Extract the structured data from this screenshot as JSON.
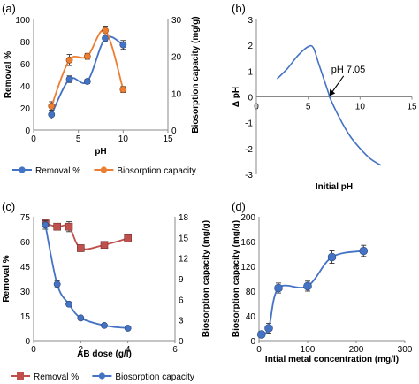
{
  "chart_data": [
    {
      "type": "line",
      "panel_label": "(a)",
      "xlabel": "pH",
      "ylabel": "Removal %",
      "y2label": "Biosorption capacity (mg/g)",
      "xlim": [
        0,
        15
      ],
      "ylim": [
        0,
        100
      ],
      "y2lim": [
        0,
        30
      ],
      "x_ticks": [
        "0",
        "5",
        "10",
        "15"
      ],
      "y_ticks": [
        "0",
        "20",
        "40",
        "60",
        "80",
        "100"
      ],
      "y2_ticks": [
        "0",
        "10",
        "20",
        "30"
      ],
      "legend_position": "bottom",
      "series": [
        {
          "name": "Removal %",
          "axis": "left",
          "color": "#4472C4",
          "x": [
            2,
            4,
            6,
            8,
            10
          ],
          "y": [
            14,
            46,
            44,
            83,
            77
          ],
          "err": [
            4,
            3,
            2,
            3,
            4
          ]
        },
        {
          "name": "Biosorption capacity",
          "axis": "right",
          "color": "#ED7D31",
          "x": [
            2,
            4,
            6,
            8,
            10
          ],
          "y": [
            6.5,
            19,
            20,
            27,
            11
          ],
          "err": [
            1.2,
            1.5,
            0.8,
            1.2,
            0.8
          ]
        }
      ]
    },
    {
      "type": "line",
      "panel_label": "(b)",
      "xlabel": "Initial pH",
      "ylabel": "Δ pH",
      "xlim": [
        0,
        15
      ],
      "ylim": [
        -3,
        3
      ],
      "x_ticks": [
        "0",
        "5",
        "10",
        "15"
      ],
      "y_ticks": [
        "-3",
        "-2",
        "-1",
        "0",
        "1",
        "2",
        "3"
      ],
      "annotation": "pH 7.05",
      "annotation_point": [
        7.05,
        0
      ],
      "series": [
        {
          "color": "#4472C4",
          "x": [
            2,
            3,
            4,
            5,
            5.5,
            6,
            7,
            7.05,
            8,
            9,
            10,
            11,
            12
          ],
          "y": [
            0.7,
            1.1,
            1.6,
            1.95,
            1.9,
            1.3,
            0.1,
            0,
            -0.8,
            -1.5,
            -2.0,
            -2.4,
            -2.65
          ]
        }
      ]
    },
    {
      "type": "line",
      "panel_label": "(c)",
      "xlabel": "AB dose (g/l)",
      "ylabel": "Removal %",
      "y2label": "Biosorption capacity (mg/g)",
      "xlim": [
        0,
        6
      ],
      "ylim": [
        0,
        75
      ],
      "y2lim": [
        0,
        18
      ],
      "x_ticks": [
        "0",
        "2",
        "4",
        "6"
      ],
      "y_ticks": [
        "0",
        "15",
        "30",
        "45",
        "60",
        "75"
      ],
      "y2_ticks": [
        "0",
        "3",
        "6",
        "9",
        "12",
        "15",
        "18"
      ],
      "legend_position": "bottom",
      "series": [
        {
          "name": "Removal %",
          "axis": "left",
          "color": "#C0504D",
          "marker": "square",
          "x": [
            0.5,
            1,
            1.5,
            2,
            3,
            4
          ],
          "y": [
            71,
            69,
            69,
            56,
            58,
            62
          ],
          "err": [
            2,
            2,
            3,
            2,
            1,
            2
          ]
        },
        {
          "name": "Biosorption capacity",
          "axis": "right",
          "color": "#4472C4",
          "marker": "circle",
          "x": [
            0.5,
            1,
            1.5,
            2,
            3,
            4
          ],
          "y": [
            16.8,
            8.2,
            5.3,
            3.3,
            2.2,
            1.8
          ],
          "err": [
            0.6,
            0.5,
            0.3,
            0.2,
            0.2,
            0.1
          ]
        }
      ]
    },
    {
      "type": "line",
      "panel_label": "(d)",
      "xlabel": "Intial metal concentration (mg/l)",
      "ylabel": "Biosorption capacity (mg/g)",
      "xlim": [
        0,
        300
      ],
      "ylim": [
        0,
        200
      ],
      "x_ticks": [
        "0",
        "100",
        "200",
        "300"
      ],
      "y_ticks": [
        "0",
        "40",
        "80",
        "120",
        "160",
        "200"
      ],
      "series": [
        {
          "color": "#4472C4",
          "marker": "circle",
          "x": [
            5,
            20,
            40,
            100,
            150,
            215
          ],
          "y": [
            10,
            20,
            85,
            88,
            135,
            145
          ],
          "err": [
            5,
            8,
            8,
            8,
            10,
            9
          ]
        }
      ]
    }
  ]
}
